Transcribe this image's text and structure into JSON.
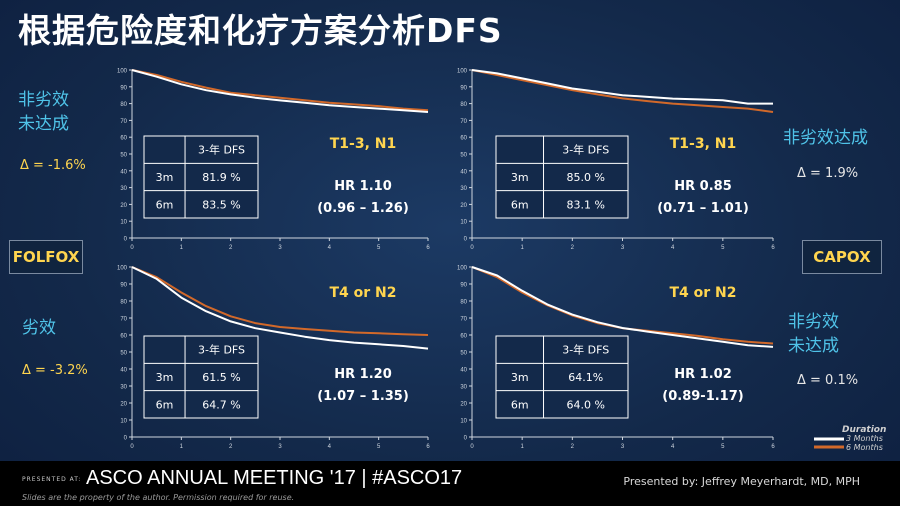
{
  "title": "根据危险度和化疗方案分析DFS",
  "labels": {
    "folfox_top": "非劣效\n未达成",
    "folfox_top_delta": "Δ = -1.6%",
    "capox_top": "非劣效达成",
    "capox_top_delta": "Δ = 1.9%",
    "folfox_bottom": "劣效",
    "folfox_bottom_delta": "Δ = -3.2%",
    "capox_bottom": "非劣效\n未达成",
    "capox_bottom_delta": "Δ = 0.1%",
    "folfox": "FOLFOX",
    "capox": "CAPOX"
  },
  "legend": {
    "title": "Duration",
    "items": [
      "3 Months",
      "6 Months"
    ]
  },
  "colors": {
    "series_3m": "#ffffff",
    "series_6m": "#d2692a",
    "annotation": "#ffd54f",
    "region_label": "#4fc3e8"
  },
  "chart_data": [
    {
      "type": "line",
      "panel": "folfox-t1-3-n1",
      "group": "T1-3, N1",
      "hr": "HR 1.10",
      "ci": "(0.96 – 1.26)",
      "x_ticks": [
        "0",
        "1",
        "2",
        "3",
        "4",
        "5",
        "6"
      ],
      "y_ticks": [
        "100",
        "90",
        "80",
        "70",
        "60",
        "50",
        "40",
        "30",
        "20",
        "10",
        "0"
      ],
      "xlim": [
        0,
        6
      ],
      "ylim": [
        0,
        100
      ],
      "table": {
        "header": [
          "",
          "3-年 DFS"
        ],
        "rows": [
          [
            "3m",
            "81.9 %"
          ],
          [
            "6m",
            "83.5 %"
          ]
        ]
      },
      "series": [
        {
          "name": "3 Months",
          "x": [
            0,
            0.5,
            1,
            1.5,
            2,
            2.5,
            3,
            3.5,
            4,
            4.5,
            5,
            5.5,
            6
          ],
          "y": [
            100,
            96,
            91.5,
            88,
            85.5,
            83.5,
            81.9,
            80.5,
            79,
            78,
            77,
            76,
            75
          ]
        },
        {
          "name": "6 Months",
          "x": [
            0,
            0.5,
            1,
            1.5,
            2,
            2.5,
            3,
            3.5,
            4,
            4.5,
            5,
            5.5,
            6
          ],
          "y": [
            100,
            97,
            93,
            89.5,
            86.5,
            85,
            83.5,
            82,
            80.5,
            79.5,
            78.5,
            77,
            76
          ]
        }
      ]
    },
    {
      "type": "line",
      "panel": "capox-t1-3-n1",
      "group": "T1-3, N1",
      "hr": "HR 0.85",
      "ci": "(0.71 – 1.01)",
      "x_ticks": [
        "0",
        "1",
        "2",
        "3",
        "4",
        "5",
        "6"
      ],
      "y_ticks": [
        "100",
        "90",
        "80",
        "70",
        "60",
        "50",
        "40",
        "30",
        "20",
        "10",
        "0"
      ],
      "xlim": [
        0,
        6
      ],
      "ylim": [
        0,
        100
      ],
      "table": {
        "header": [
          "",
          "3-年 DFS"
        ],
        "rows": [
          [
            "3m",
            "85.0 %"
          ],
          [
            "6m",
            "83.1 %"
          ]
        ]
      },
      "series": [
        {
          "name": "3 Months",
          "x": [
            0,
            0.5,
            1,
            1.5,
            2,
            2.5,
            3,
            3.5,
            4,
            4.5,
            5,
            5.5,
            6
          ],
          "y": [
            100,
            98,
            95,
            92,
            89,
            87,
            85,
            84,
            83,
            82.5,
            82,
            80,
            80
          ]
        },
        {
          "name": "6 Months",
          "x": [
            0,
            0.5,
            1,
            1.5,
            2,
            2.5,
            3,
            3.5,
            4,
            4.5,
            5,
            5.5,
            6
          ],
          "y": [
            100,
            97,
            94,
            91,
            88,
            85.5,
            83.1,
            81.5,
            80,
            79,
            78,
            77,
            75
          ]
        }
      ]
    },
    {
      "type": "line",
      "panel": "folfox-t4-n2",
      "group": "T4 or N2",
      "hr": "HR 1.20",
      "ci": "(1.07 – 1.35)",
      "x_ticks": [
        "0",
        "1",
        "2",
        "3",
        "4",
        "5",
        "6"
      ],
      "y_ticks": [
        "100",
        "90",
        "80",
        "70",
        "60",
        "50",
        "40",
        "30",
        "20",
        "10",
        "0"
      ],
      "xlim": [
        0,
        6
      ],
      "ylim": [
        0,
        100
      ],
      "table": {
        "header": [
          "",
          "3-年 DFS"
        ],
        "rows": [
          [
            "3m",
            "61.5 %"
          ],
          [
            "6m",
            "64.7 %"
          ]
        ]
      },
      "series": [
        {
          "name": "3 Months",
          "x": [
            0,
            0.5,
            1,
            1.5,
            2,
            2.5,
            3,
            3.5,
            4,
            4.5,
            5,
            5.5,
            6
          ],
          "y": [
            100,
            93,
            82,
            74,
            68,
            64,
            61.5,
            59,
            57,
            55.5,
            54.5,
            53.5,
            52
          ]
        },
        {
          "name": "6 Months",
          "x": [
            0,
            0.5,
            1,
            1.5,
            2,
            2.5,
            3,
            3.5,
            4,
            4.5,
            5,
            5.5,
            6
          ],
          "y": [
            100,
            94,
            85,
            77,
            71,
            67,
            64.7,
            63.5,
            62.5,
            61.5,
            61,
            60.5,
            60
          ]
        }
      ]
    },
    {
      "type": "line",
      "panel": "capox-t4-n2",
      "group": "T4 or N2",
      "hr": "HR 1.02",
      "ci": "(0.89-1.17)",
      "x_ticks": [
        "0",
        "1",
        "2",
        "3",
        "4",
        "5",
        "6"
      ],
      "y_ticks": [
        "100",
        "90",
        "80",
        "70",
        "60",
        "50",
        "40",
        "30",
        "20",
        "10",
        "0"
      ],
      "xlim": [
        0,
        6
      ],
      "ylim": [
        0,
        100
      ],
      "table": {
        "header": [
          "",
          "3-年 DFS"
        ],
        "rows": [
          [
            "3m",
            "64.1%"
          ],
          [
            "6m",
            "64.0 %"
          ]
        ]
      },
      "series": [
        {
          "name": "3 Months",
          "x": [
            0,
            0.5,
            1,
            1.5,
            2,
            2.5,
            3,
            3.5,
            4,
            4.5,
            5,
            5.5,
            6
          ],
          "y": [
            100,
            95,
            86,
            78,
            72,
            67.5,
            64.1,
            62,
            60,
            58,
            56,
            54,
            53
          ]
        },
        {
          "name": "6 Months",
          "x": [
            0,
            0.5,
            1,
            1.5,
            2,
            2.5,
            3,
            3.5,
            4,
            4.5,
            5,
            5.5,
            6
          ],
          "y": [
            100,
            94,
            85,
            77.5,
            71.5,
            67,
            64,
            62.5,
            61,
            59.5,
            57.5,
            56,
            55
          ]
        }
      ]
    }
  ],
  "footer": {
    "presented_at": "PRESENTED AT:",
    "meeting": "ASCO ANNUAL MEETING '17  |  #ASCO17",
    "disclaimer": "Slides are the property of the author. Permission required for reuse.",
    "presenter": "Presented by: Jeffrey Meyerhardt, MD, MPH"
  }
}
